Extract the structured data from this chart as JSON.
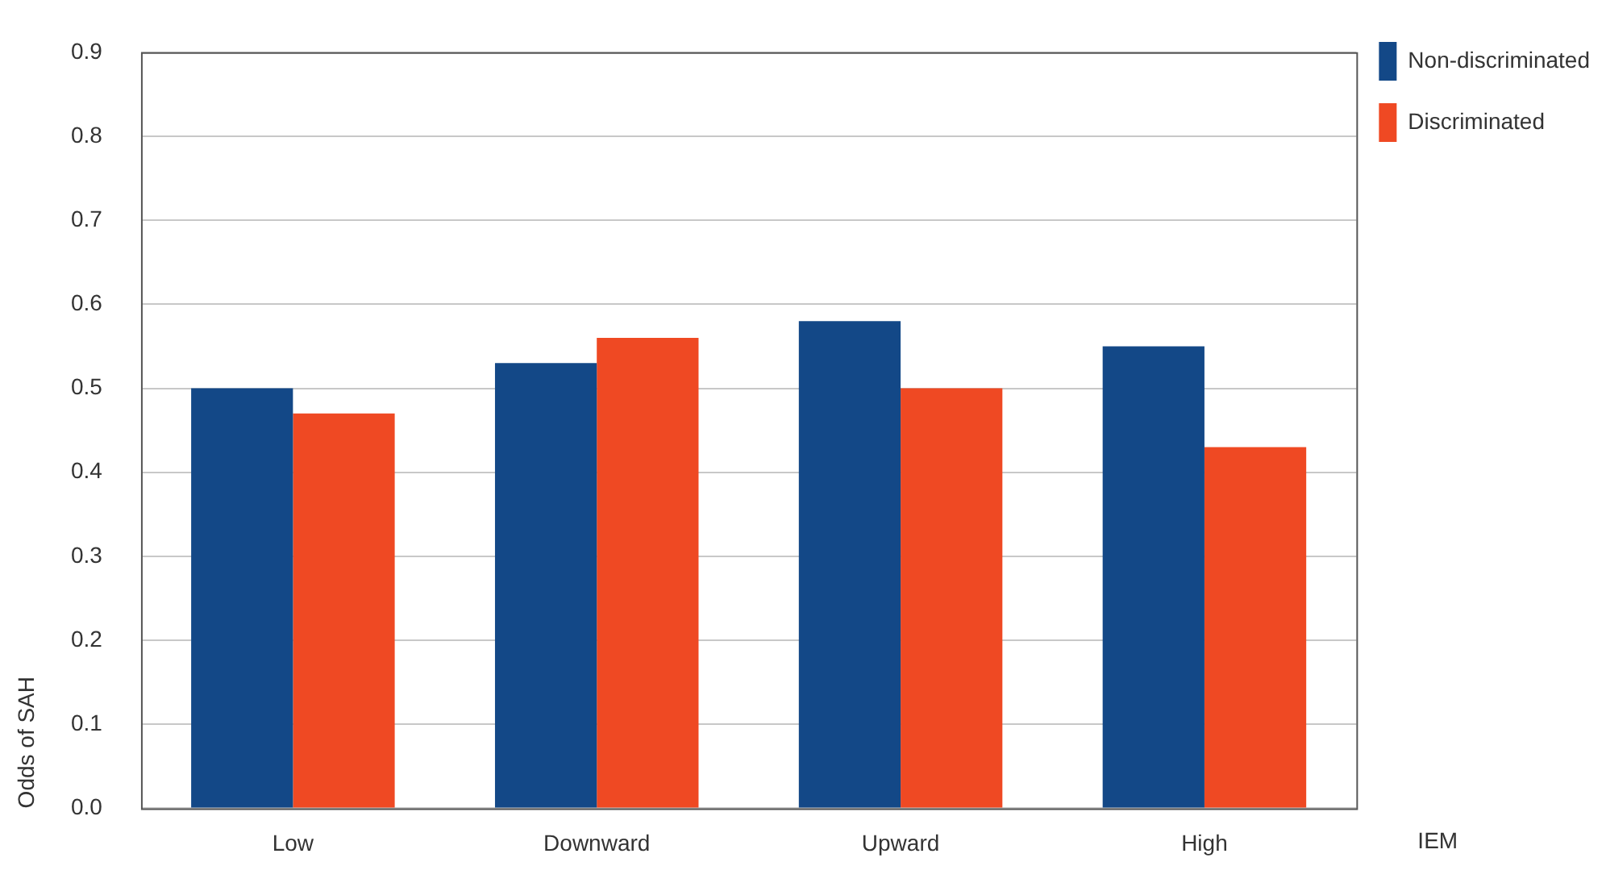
{
  "chart_data": {
    "type": "bar",
    "xlabel": "IEM",
    "ylabel": "Odds of SAH",
    "categories": [
      "Low",
      "Downward",
      "Upward",
      "High"
    ],
    "series": [
      {
        "name": "Non-discriminated",
        "color": "#134887",
        "values": [
          0.5,
          0.53,
          0.58,
          0.55
        ]
      },
      {
        "name": "Discriminated",
        "color": "#ef4923",
        "values": [
          0.47,
          0.56,
          0.5,
          0.43
        ]
      }
    ],
    "ylim": [
      0,
      0.9
    ],
    "yticks": [
      {
        "value": 0,
        "label": "0.0"
      },
      0.1,
      0.2,
      0.3,
      0.4,
      0.5,
      0.6,
      0.7,
      0.8,
      0.9
    ],
    "grid": "y",
    "legend": "top right"
  }
}
